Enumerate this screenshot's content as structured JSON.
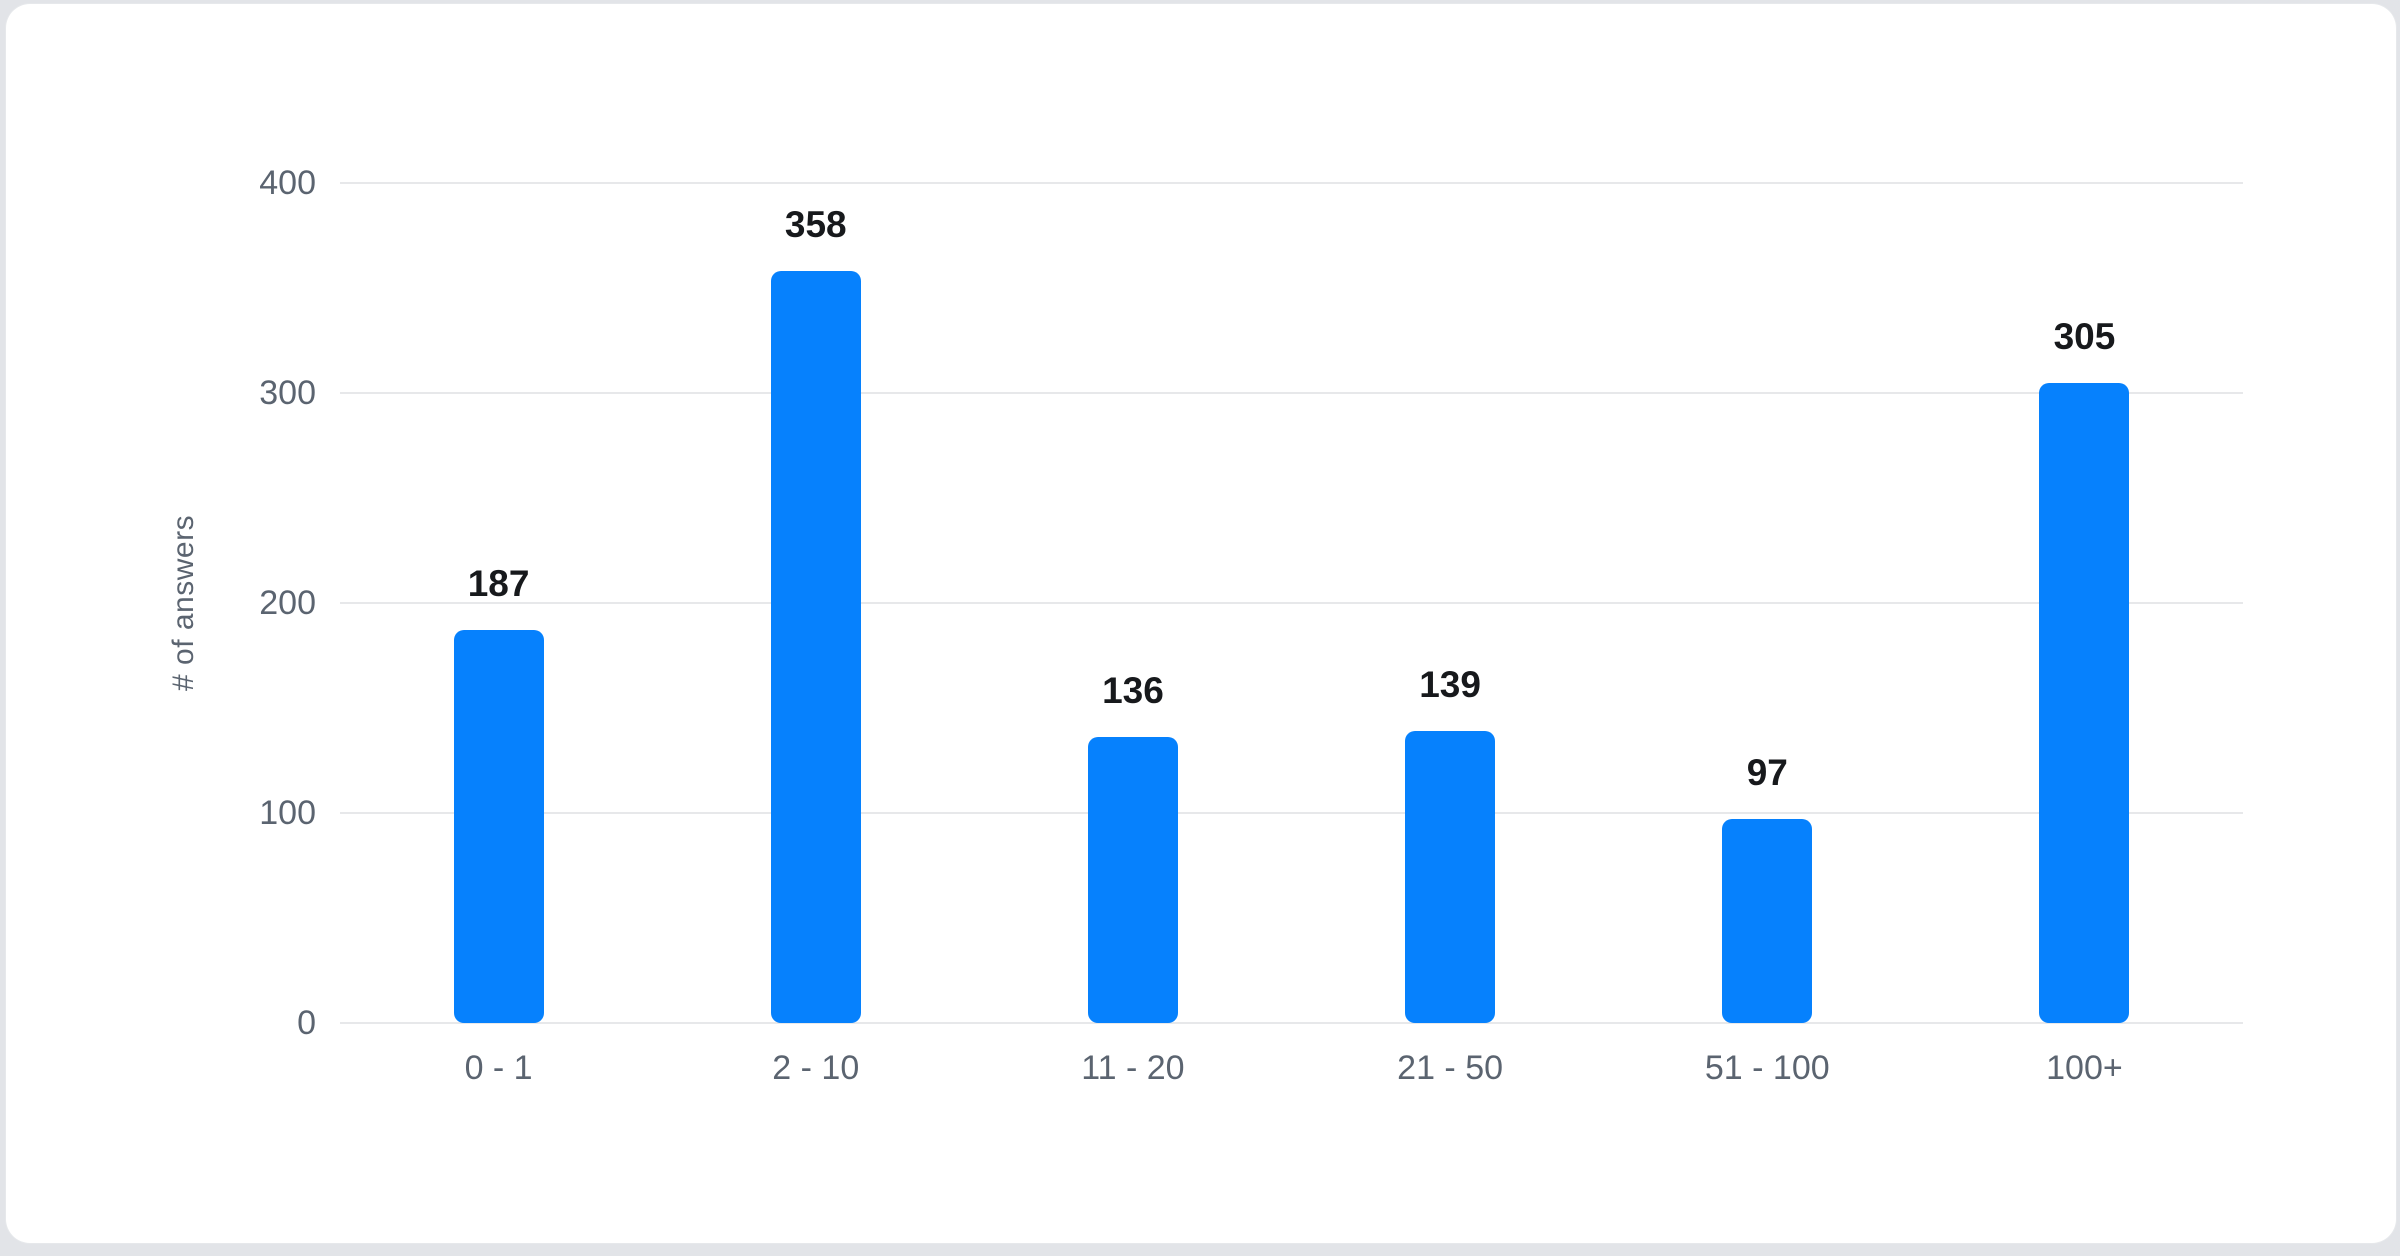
{
  "chart_data": {
    "type": "bar",
    "title": "",
    "categories": [
      "0 - 1",
      "2 - 10",
      "11 - 20",
      "21 - 50",
      "51 - 100",
      "100+"
    ],
    "values": [
      187,
      358,
      136,
      139,
      97,
      305
    ],
    "xlabel": "",
    "ylabel": "# of answers",
    "ylim": [
      0,
      400
    ],
    "yticks": [
      0,
      100,
      200,
      300,
      400
    ],
    "grid": true,
    "legend": "none",
    "bar_color": "#0681fd",
    "value_label_color": "#17191c",
    "axis_label_color": "#5b6470",
    "gridline_color": "#e7e8ea",
    "card_background": "#ffffff",
    "page_background": "#e2e4e8"
  }
}
